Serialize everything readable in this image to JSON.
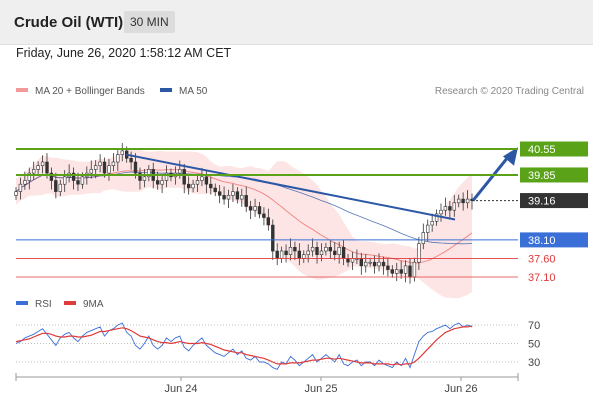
{
  "header": {
    "title": "Crude Oil (WTI)",
    "timeframe": "30 MIN",
    "timestamp": "Friday, June 26, 2020 1:58:12 AM CET"
  },
  "legend": {
    "ma20_label": "MA 20 + Bollinger Bands",
    "ma50_label": "MA 50",
    "credit": "Research © 2020 Trading Central",
    "rsi_label": "RSI",
    "rsi_ma_label": "9MA"
  },
  "colors": {
    "green": "#5aa318",
    "blue": "#3a6fd8",
    "red": "#e03a3a",
    "dark": "#333333",
    "band": "#fde0e0",
    "candle": "#333333",
    "trend": "#2b57a5"
  },
  "chart_data": [
    {
      "type": "candlestick",
      "title": "Crude Oil (WTI)",
      "timeframe": "30 MIN",
      "x_ticks": [
        "Jun 24",
        "Jun 25",
        "Jun 26"
      ],
      "ylim": [
        36.7,
        41.2
      ],
      "close": [
        39.4,
        39.6,
        39.7,
        39.9,
        40.0,
        40.1,
        40.2,
        39.9,
        39.7,
        39.4,
        39.6,
        39.8,
        39.9,
        39.7,
        39.6,
        39.8,
        39.9,
        40.0,
        40.1,
        40.2,
        39.9,
        40.1,
        40.2,
        40.4,
        40.5,
        40.3,
        40.2,
        39.9,
        39.7,
        39.8,
        40.0,
        39.7,
        39.6,
        39.7,
        39.9,
        39.8,
        39.9,
        40.0,
        39.6,
        39.5,
        39.6,
        39.7,
        39.8,
        39.6,
        39.5,
        39.4,
        39.3,
        39.2,
        39.3,
        39.4,
        39.2,
        39.3,
        39.0,
        38.9,
        39.0,
        38.8,
        38.7,
        38.5,
        37.8,
        37.6,
        37.8,
        37.7,
        37.9,
        37.8,
        37.6,
        37.7,
        37.8,
        37.9,
        37.7,
        37.8,
        37.9,
        37.8,
        37.7,
        37.9,
        37.6,
        37.5,
        37.6,
        37.6,
        37.4,
        37.5,
        37.5,
        37.4,
        37.5,
        37.4,
        37.3,
        37.2,
        37.3,
        37.2,
        37.4,
        37.1,
        37.5,
        38.0,
        38.3,
        38.5,
        38.6,
        38.8,
        38.9,
        39.0,
        38.9,
        39.1,
        39.2,
        39.1,
        39.2,
        39.16
      ],
      "levels": [
        {
          "label": "40.55",
          "value": 40.55,
          "kind": "resistance"
        },
        {
          "label": "39.85",
          "value": 39.85,
          "kind": "resistance"
        },
        {
          "label": "39.16",
          "value": 39.16,
          "kind": "last"
        },
        {
          "label": "38.10",
          "value": 38.1,
          "kind": "pivot"
        },
        {
          "label": "37.60",
          "value": 37.6,
          "kind": "support"
        },
        {
          "label": "37.10",
          "value": 37.1,
          "kind": "support"
        }
      ],
      "series": [
        {
          "name": "MA 20 + Bollinger Bands"
        },
        {
          "name": "MA 50"
        }
      ],
      "legend": "top-left"
    },
    {
      "type": "line",
      "series": [
        {
          "name": "RSI",
          "values": [
            50,
            52,
            56,
            58,
            60,
            63,
            66,
            60,
            54,
            48,
            56,
            60,
            62,
            56,
            52,
            58,
            62,
            64,
            66,
            68,
            58,
            64,
            66,
            70,
            72,
            62,
            58,
            48,
            44,
            50,
            58,
            48,
            44,
            48,
            56,
            52,
            56,
            58,
            46,
            42,
            48,
            52,
            56,
            48,
            44,
            40,
            38,
            36,
            40,
            44,
            38,
            42,
            34,
            32,
            36,
            30,
            30,
            28,
            24,
            22,
            30,
            28,
            36,
            32,
            26,
            30,
            34,
            38,
            30,
            34,
            38,
            34,
            30,
            38,
            28,
            26,
            30,
            32,
            26,
            30,
            30,
            26,
            32,
            28,
            26,
            24,
            30,
            26,
            34,
            24,
            38,
            52,
            58,
            62,
            63,
            66,
            68,
            70,
            66,
            70,
            72,
            68,
            70,
            68
          ]
        },
        {
          "name": "9MA",
          "values": [
            52,
            53,
            54,
            55,
            57,
            59,
            61,
            61,
            60,
            58,
            57,
            57,
            58,
            58,
            57,
            57,
            58,
            59,
            61,
            63,
            63,
            64,
            65,
            66,
            67,
            66,
            64,
            61,
            58,
            57,
            56,
            54,
            52,
            51,
            51,
            50,
            51,
            52,
            51,
            50,
            50,
            50,
            51,
            50,
            49,
            47,
            45,
            43,
            42,
            41,
            40,
            40,
            38,
            37,
            36,
            35,
            34,
            32,
            30,
            28,
            28,
            28,
            29,
            29,
            29,
            30,
            31,
            32,
            32,
            33,
            34,
            34,
            33,
            34,
            33,
            32,
            31,
            30,
            29,
            29,
            29,
            28,
            28,
            28,
            28,
            27,
            28,
            27,
            28,
            28,
            30,
            34,
            39,
            44,
            49,
            54,
            58,
            62,
            64,
            66,
            67,
            68,
            68,
            69
          ]
        }
      ],
      "levels": [
        70,
        50,
        30
      ],
      "ylim": [
        15,
        80
      ]
    }
  ]
}
